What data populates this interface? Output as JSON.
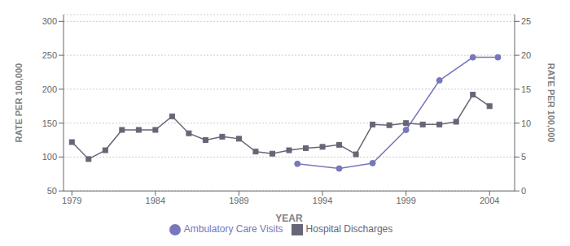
{
  "chart_data": {
    "type": "line",
    "xlabel": "YEAR",
    "ylabel": "RATE PER 100,000",
    "y2label": "RATE PER 100,000",
    "xlim": [
      1978.5,
      2005.5
    ],
    "xticks": [
      1979,
      1984,
      1989,
      1994,
      1999,
      2004
    ],
    "ylim": [
      50,
      310
    ],
    "yticks": [
      50,
      100,
      150,
      200,
      250,
      300
    ],
    "y2lim": [
      0,
      26
    ],
    "y2ticks": [
      0,
      5,
      10,
      15,
      20,
      25
    ],
    "grid": true,
    "legend": "bottom",
    "series": [
      {
        "name": "Ambulatory Care Visits",
        "color": "#7777bb",
        "marker": "circle",
        "x": [
          1992.5,
          1995.0,
          1997.0,
          1999.0,
          2001.0,
          2003.0,
          2004.5
        ],
        "values": [
          90,
          83,
          91,
          140,
          213,
          247,
          247
        ]
      },
      {
        "name": "Hospital Discharges",
        "color": "#666677",
        "marker": "square",
        "x": [
          1979,
          1980,
          1981,
          1982,
          1983,
          1984,
          1985,
          1986,
          1987,
          1988,
          1989,
          1990,
          1991,
          1992,
          1993,
          1994,
          1995,
          1996,
          1997,
          1998,
          1999,
          2000,
          2001,
          2002,
          2003,
          2004
        ],
        "values": [
          122,
          97,
          110,
          140,
          140,
          140,
          160,
          135,
          125,
          130,
          127,
          108,
          105,
          110,
          113,
          115,
          118,
          104,
          148,
          147,
          150,
          148,
          148,
          152,
          192,
          175
        ]
      }
    ]
  }
}
